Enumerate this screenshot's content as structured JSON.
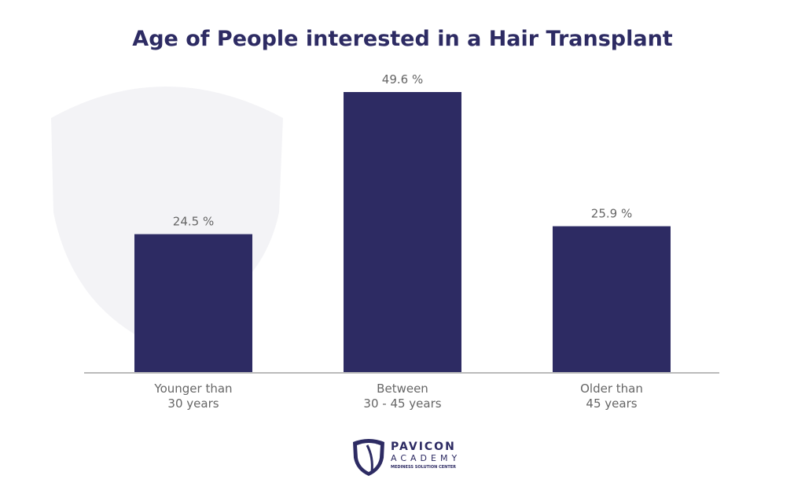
{
  "chart_data": {
    "type": "bar",
    "title": "Age of People interested in a Hair Transplant",
    "categories": [
      [
        "Younger than",
        "30 years"
      ],
      [
        "Between",
        "30 - 45 years"
      ],
      [
        "Older than",
        "45 years"
      ]
    ],
    "values": [
      24.5,
      49.6,
      25.9
    ],
    "data_labels": [
      "24.5 %",
      "49.6 %",
      "25.9 %"
    ],
    "xlabel": "",
    "ylabel": "",
    "ylim": [
      0,
      50
    ],
    "grid": false,
    "bar_color": "#2d2b63"
  },
  "logo": {
    "name": "PAVICON",
    "line2": "ACADEMY",
    "tagline": "MEDINESS SOLUTION CENTER"
  }
}
